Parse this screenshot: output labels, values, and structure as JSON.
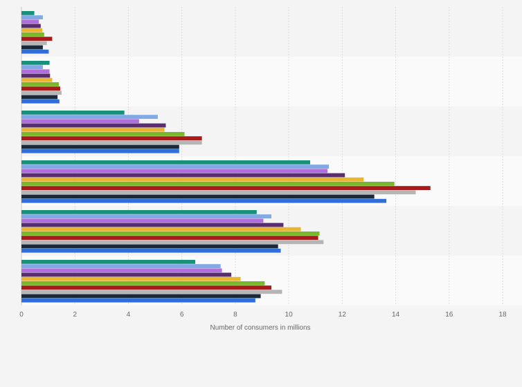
{
  "chart_data": {
    "type": "bar",
    "orientation": "horizontal",
    "xlabel": "Number of consumers in millions",
    "xlim": [
      0,
      18
    ],
    "xticks": [
      0,
      2,
      4,
      6,
      8,
      10,
      12,
      14,
      16,
      18
    ],
    "grid": true,
    "legend": "none",
    "groups": [
      {
        "values": [
          0.48,
          0.8,
          0.65,
          0.72,
          0.78,
          0.85,
          1.15,
          0.95,
          0.8,
          1.02
        ]
      },
      {
        "values": [
          1.05,
          0.8,
          1.05,
          1.07,
          1.15,
          1.4,
          1.45,
          1.5,
          1.35,
          1.42
        ]
      },
      {
        "values": [
          3.85,
          5.1,
          4.4,
          5.4,
          5.35,
          6.1,
          6.75,
          6.75,
          5.9,
          5.9
        ]
      },
      {
        "values": [
          10.8,
          11.5,
          11.45,
          12.1,
          12.8,
          13.95,
          15.3,
          14.75,
          13.2,
          13.65
        ]
      },
      {
        "values": [
          8.8,
          9.35,
          9.05,
          9.8,
          10.45,
          11.15,
          11.1,
          11.3,
          9.6,
          9.7
        ]
      },
      {
        "values": [
          6.5,
          7.45,
          7.5,
          7.85,
          8.2,
          9.1,
          9.35,
          9.75,
          8.95,
          8.75
        ]
      }
    ],
    "series_colors": [
      "#17917a",
      "#7faae6",
      "#b06fe0",
      "#5a2d73",
      "#e8b52b",
      "#78b82a",
      "#a81b1b",
      "#b5b5b5",
      "#1a2a3a",
      "#2f6fd6"
    ]
  }
}
